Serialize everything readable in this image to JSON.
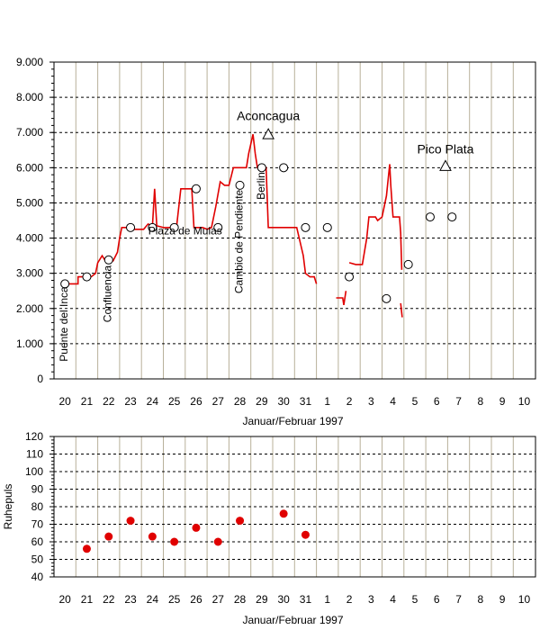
{
  "chart_data": [
    {
      "type": "line",
      "title": "",
      "xlabel": "Januar/Februar 1997",
      "ylabel": "",
      "categories": [
        "20",
        "21",
        "22",
        "23",
        "24",
        "25",
        "26",
        "27",
        "28",
        "29",
        "30",
        "31",
        "1",
        "2",
        "3",
        "4",
        "5",
        "6",
        "7",
        "8",
        "9",
        "10"
      ],
      "ylim": [
        0,
        9000
      ],
      "yticks": [
        "0",
        "1.000",
        "2.000",
        "3.000",
        "4.000",
        "5.000",
        "6.000",
        "7.000",
        "8.000",
        "9.000"
      ],
      "grid": true,
      "line_color": "#e00000",
      "altitude_segments": [
        [
          [
            20.0,
            2700
          ],
          [
            20.6,
            2700
          ],
          [
            20.6,
            2900
          ],
          [
            21.2,
            2900
          ],
          [
            21.4,
            3000
          ],
          [
            21.5,
            3300
          ],
          [
            21.7,
            3500
          ],
          [
            21.9,
            3300
          ],
          [
            22.2,
            3350
          ],
          [
            22.4,
            3600
          ],
          [
            22.5,
            4000
          ],
          [
            22.6,
            4300
          ],
          [
            22.8,
            4300
          ],
          [
            23.0,
            4250
          ],
          [
            23.3,
            4250
          ],
          [
            23.6,
            4250
          ],
          [
            23.8,
            4400
          ],
          [
            24.0,
            4350
          ],
          [
            24.1,
            5400
          ],
          [
            24.2,
            4350
          ],
          [
            24.5,
            4300
          ],
          [
            24.7,
            4300
          ],
          [
            24.8,
            4300
          ],
          [
            25.0,
            4300
          ],
          [
            25.1,
            4300
          ],
          [
            25.3,
            5400
          ],
          [
            25.6,
            5400
          ],
          [
            25.8,
            5400
          ],
          [
            25.9,
            4300
          ],
          [
            26.3,
            4300
          ],
          [
            26.5,
            4250
          ],
          [
            26.7,
            4300
          ],
          [
            26.9,
            4900
          ],
          [
            27.1,
            5600
          ],
          [
            27.3,
            5500
          ],
          [
            27.5,
            5500
          ],
          [
            27.7,
            6000
          ],
          [
            28.0,
            6000
          ],
          [
            28.3,
            6000
          ],
          [
            28.4,
            6400
          ],
          [
            28.6,
            6950
          ],
          [
            28.7,
            6400
          ],
          [
            28.8,
            6000
          ],
          [
            29.0,
            6000
          ],
          [
            29.2,
            6000
          ],
          [
            29.3,
            4300
          ],
          [
            29.6,
            4300
          ],
          [
            30.0,
            4300
          ],
          [
            30.4,
            4300
          ],
          [
            30.6,
            4300
          ],
          [
            30.9,
            3500
          ],
          [
            31.0,
            3000
          ],
          [
            31.2,
            2900
          ],
          [
            31.4,
            2900
          ],
          [
            31.5,
            2700
          ]
        ],
        [
          [
            32.4,
            2300
          ],
          [
            32.7,
            2300
          ],
          [
            32.75,
            2100
          ],
          [
            32.85,
            2500
          ]
        ],
        [
          [
            33.0,
            3300
          ],
          [
            33.3,
            3250
          ],
          [
            33.6,
            3250
          ],
          [
            33.8,
            4000
          ],
          [
            33.9,
            4600
          ],
          [
            34.2,
            4600
          ],
          [
            34.3,
            4500
          ],
          [
            34.5,
            4600
          ],
          [
            34.7,
            5200
          ],
          [
            34.8,
            5800
          ],
          [
            34.85,
            6100
          ],
          [
            34.9,
            5500
          ],
          [
            35.0,
            4600
          ],
          [
            35.3,
            4600
          ],
          [
            35.35,
            4150
          ],
          [
            35.4,
            3100
          ]
        ],
        [
          [
            35.35,
            2150
          ],
          [
            35.42,
            1750
          ]
        ]
      ],
      "markers": [
        {
          "x": 20.0,
          "y": 2700,
          "shape": "circle"
        },
        {
          "x": 21.0,
          "y": 2900,
          "shape": "circle"
        },
        {
          "x": 22.0,
          "y": 3380,
          "shape": "circle"
        },
        {
          "x": 23.0,
          "y": 4300,
          "shape": "circle"
        },
        {
          "x": 24.0,
          "y": 4300,
          "shape": "circle"
        },
        {
          "x": 25.0,
          "y": 4300,
          "shape": "circle"
        },
        {
          "x": 26.0,
          "y": 5400,
          "shape": "circle"
        },
        {
          "x": 27.0,
          "y": 4300,
          "shape": "circle"
        },
        {
          "x": 28.0,
          "y": 5500,
          "shape": "circle"
        },
        {
          "x": 29.0,
          "y": 6000,
          "shape": "circle"
        },
        {
          "x": 29.3,
          "y": 6950,
          "shape": "triangle"
        },
        {
          "x": 30.0,
          "y": 6000,
          "shape": "circle"
        },
        {
          "x": 31.0,
          "y": 4300,
          "shape": "circle"
        },
        {
          "x": 32.0,
          "y": 4300,
          "shape": "circle"
        },
        {
          "x": 33.0,
          "y": 2900,
          "shape": "circle"
        },
        {
          "x": 34.7,
          "y": 2280,
          "shape": "circle"
        },
        {
          "x": 35.7,
          "y": 3250,
          "shape": "circle"
        },
        {
          "x": 36.7,
          "y": 4600,
          "shape": "circle"
        },
        {
          "x": 37.4,
          "y": 6050,
          "shape": "triangle"
        },
        {
          "x": 37.7,
          "y": 4600,
          "shape": "circle"
        }
      ],
      "annotations": [
        {
          "text": "Puente del Inca",
          "x": 20.0,
          "y": 2600,
          "rotated": true
        },
        {
          "text": "Confluencia",
          "x": 22.0,
          "y": 3200,
          "rotated": true
        },
        {
          "text": "Plaza de Mulas",
          "x": 25.5,
          "y": 4100,
          "rotated": false
        },
        {
          "text": "Cambio de Pendiente",
          "x": 28.0,
          "y": 5350,
          "rotated": true
        },
        {
          "text": "Berlin",
          "x": 29.0,
          "y": 5850,
          "rotated": true
        },
        {
          "text": "Aconcagua",
          "x": 29.3,
          "y": 7350,
          "rotated": false
        },
        {
          "text": "Pico Plata",
          "x": 37.4,
          "y": 6400,
          "rotated": false
        }
      ]
    },
    {
      "type": "scatter",
      "title": "",
      "xlabel": "Januar/Februar 1997",
      "ylabel": "Ruhepuls",
      "categories": [
        "20",
        "21",
        "22",
        "23",
        "24",
        "25",
        "26",
        "27",
        "28",
        "29",
        "30",
        "31",
        "1",
        "2",
        "3",
        "4",
        "5",
        "6",
        "7",
        "8",
        "9",
        "10"
      ],
      "ylim": [
        40,
        120
      ],
      "yticks": [
        "40",
        "50",
        "60",
        "70",
        "80",
        "90",
        "100",
        "110",
        "120"
      ],
      "grid": true,
      "point_color": "#e00000",
      "points": [
        {
          "x": 21,
          "y": 56
        },
        {
          "x": 22,
          "y": 63
        },
        {
          "x": 23,
          "y": 72
        },
        {
          "x": 24,
          "y": 63
        },
        {
          "x": 25,
          "y": 60
        },
        {
          "x": 26,
          "y": 68
        },
        {
          "x": 27,
          "y": 60
        },
        {
          "x": 28,
          "y": 72
        },
        {
          "x": 30,
          "y": 76
        },
        {
          "x": 31,
          "y": 64
        }
      ]
    }
  ]
}
